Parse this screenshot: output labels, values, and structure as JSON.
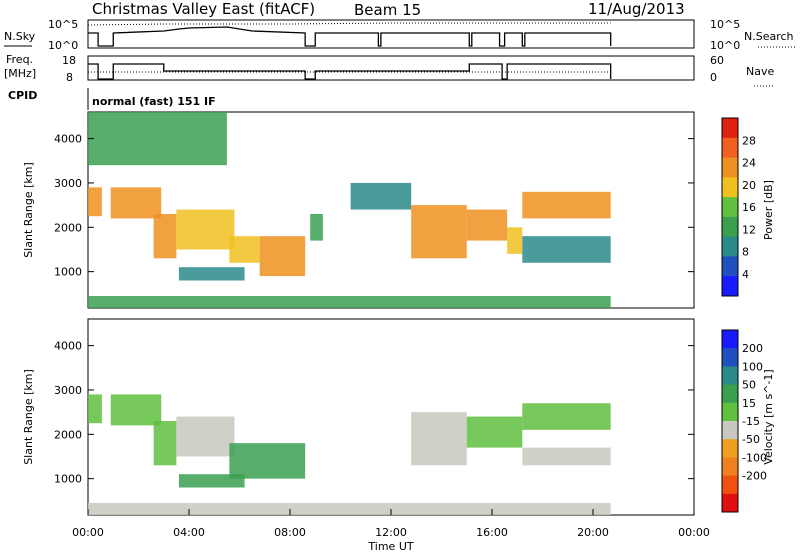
{
  "header": {
    "title": "Christmas Valley East (fitACF)",
    "beam": "Beam 15",
    "date": "11/Aug/2013"
  },
  "labels": {
    "nsky": "N.Sky",
    "nsearch": "N.Search",
    "freq_line1": "Freq.",
    "freq_line2": "[MHz]",
    "nave": "Nave",
    "cpid": "CPID",
    "cpid_value": "normal (fast) 151 IF",
    "noise_ticks_left": [
      "10^5",
      "10^0"
    ],
    "noise_ticks_right": [
      "10^5",
      "10^0"
    ],
    "freq_ticks_left": [
      "18",
      "8"
    ],
    "freq_ticks_right": [
      "60",
      "0"
    ],
    "xaxis_label": "Time UT",
    "yaxis_label": "Slant Range [km]"
  },
  "chart_data": [
    {
      "type": "heatmap",
      "name": "Power",
      "xlabel": "Time UT",
      "ylabel": "Slant Range [km]",
      "xlim": [
        0,
        24
      ],
      "ylim": [
        180,
        4600
      ],
      "x_ticks": [
        "00:00",
        "04:00",
        "08:00",
        "12:00",
        "16:00",
        "20:00",
        "00:00"
      ],
      "y_ticks": [
        1000,
        2000,
        3000,
        4000
      ],
      "colorbar": {
        "label": "Power [dB]",
        "ticks": [
          4,
          8,
          12,
          16,
          20,
          24,
          28
        ],
        "range": [
          0,
          32
        ],
        "colors": [
          "#1a1aff",
          "#2050c0",
          "#2a8a8a",
          "#3aa050",
          "#60c040",
          "#f0c020",
          "#f09020",
          "#f06020",
          "#e02010"
        ]
      },
      "regions": [
        {
          "t0": 0.0,
          "t1": 0.55,
          "r0": 2250,
          "r1": 2900,
          "value": 22
        },
        {
          "t0": 0.9,
          "t1": 2.9,
          "r0": 2200,
          "r1": 2900,
          "value": 22
        },
        {
          "t0": 2.6,
          "t1": 3.5,
          "r0": 1300,
          "r1": 2300,
          "value": 24
        },
        {
          "t0": 3.5,
          "t1": 5.8,
          "r0": 1500,
          "r1": 2400,
          "value": 18
        },
        {
          "t0": 3.6,
          "t1": 6.2,
          "r0": 800,
          "r1": 1100,
          "value": 10
        },
        {
          "t0": 5.6,
          "t1": 6.8,
          "r0": 1200,
          "r1": 1800,
          "value": 20
        },
        {
          "t0": 6.8,
          "t1": 8.6,
          "r0": 900,
          "r1": 1800,
          "value": 22
        },
        {
          "t0": 8.8,
          "t1": 9.3,
          "r0": 1700,
          "r1": 2300,
          "value": 14
        },
        {
          "t0": 10.4,
          "t1": 12.8,
          "r0": 2400,
          "r1": 3000,
          "value": 10
        },
        {
          "t0": 12.8,
          "t1": 15.0,
          "r0": 1300,
          "r1": 2500,
          "value": 24
        },
        {
          "t0": 15.0,
          "t1": 16.6,
          "r0": 1700,
          "r1": 2400,
          "value": 22
        },
        {
          "t0": 16.6,
          "t1": 17.2,
          "r0": 1400,
          "r1": 2000,
          "value": 18
        },
        {
          "t0": 17.2,
          "t1": 20.7,
          "r0": 2200,
          "r1": 2800,
          "value": 22
        },
        {
          "t0": 17.2,
          "t1": 20.7,
          "r0": 1200,
          "r1": 1800,
          "value": 10
        },
        {
          "t0": 0.0,
          "t1": 20.7,
          "r0": 180,
          "r1": 450,
          "value": 12
        },
        {
          "t0": 0.0,
          "t1": 5.5,
          "r0": 3400,
          "r1": 4600,
          "value": 12
        }
      ]
    },
    {
      "type": "heatmap",
      "name": "Velocity",
      "xlabel": "Time UT",
      "ylabel": "Slant Range [km]",
      "xlim": [
        0,
        24
      ],
      "ylim": [
        180,
        4600
      ],
      "x_ticks": [
        "00:00",
        "04:00",
        "08:00",
        "12:00",
        "16:00",
        "20:00",
        "00:00"
      ],
      "y_ticks": [
        1000,
        2000,
        3000,
        4000
      ],
      "colorbar": {
        "label": "Velocity [m s^-1]",
        "ticks": [
          200,
          100,
          50,
          15,
          -15,
          -50,
          -100,
          -200
        ],
        "colors": [
          "#1a1aff",
          "#2050c0",
          "#2a8a8a",
          "#3aa050",
          "#60c040",
          "#c8c8c0",
          "#f0a020",
          "#f08020",
          "#f05010",
          "#e01010"
        ]
      },
      "regions": [
        {
          "t0": 0.0,
          "t1": 0.55,
          "r0": 2250,
          "r1": 2900,
          "value": 0
        },
        {
          "t0": 0.9,
          "t1": 2.9,
          "r0": 2200,
          "r1": 2900,
          "value": 0
        },
        {
          "t0": 2.6,
          "t1": 3.5,
          "r0": 1300,
          "r1": 2300,
          "value": 0
        },
        {
          "t0": 3.5,
          "t1": 5.8,
          "r0": 1500,
          "r1": 2400,
          "value": -30
        },
        {
          "t0": 3.6,
          "t1": 6.2,
          "r0": 800,
          "r1": 1100,
          "value": 40
        },
        {
          "t0": 5.6,
          "t1": 8.6,
          "r0": 1000,
          "r1": 1800,
          "value": 40
        },
        {
          "t0": 12.8,
          "t1": 15.0,
          "r0": 1300,
          "r1": 2500,
          "value": -20
        },
        {
          "t0": 15.0,
          "t1": 17.2,
          "r0": 1700,
          "r1": 2400,
          "value": 0
        },
        {
          "t0": 17.2,
          "t1": 20.7,
          "r0": 2100,
          "r1": 2700,
          "value": 0
        },
        {
          "t0": 17.2,
          "t1": 20.7,
          "r0": 1300,
          "r1": 1700,
          "value": -30
        },
        {
          "t0": 0.0,
          "t1": 20.7,
          "r0": 180,
          "r1": 450,
          "value": -40
        }
      ]
    }
  ]
}
